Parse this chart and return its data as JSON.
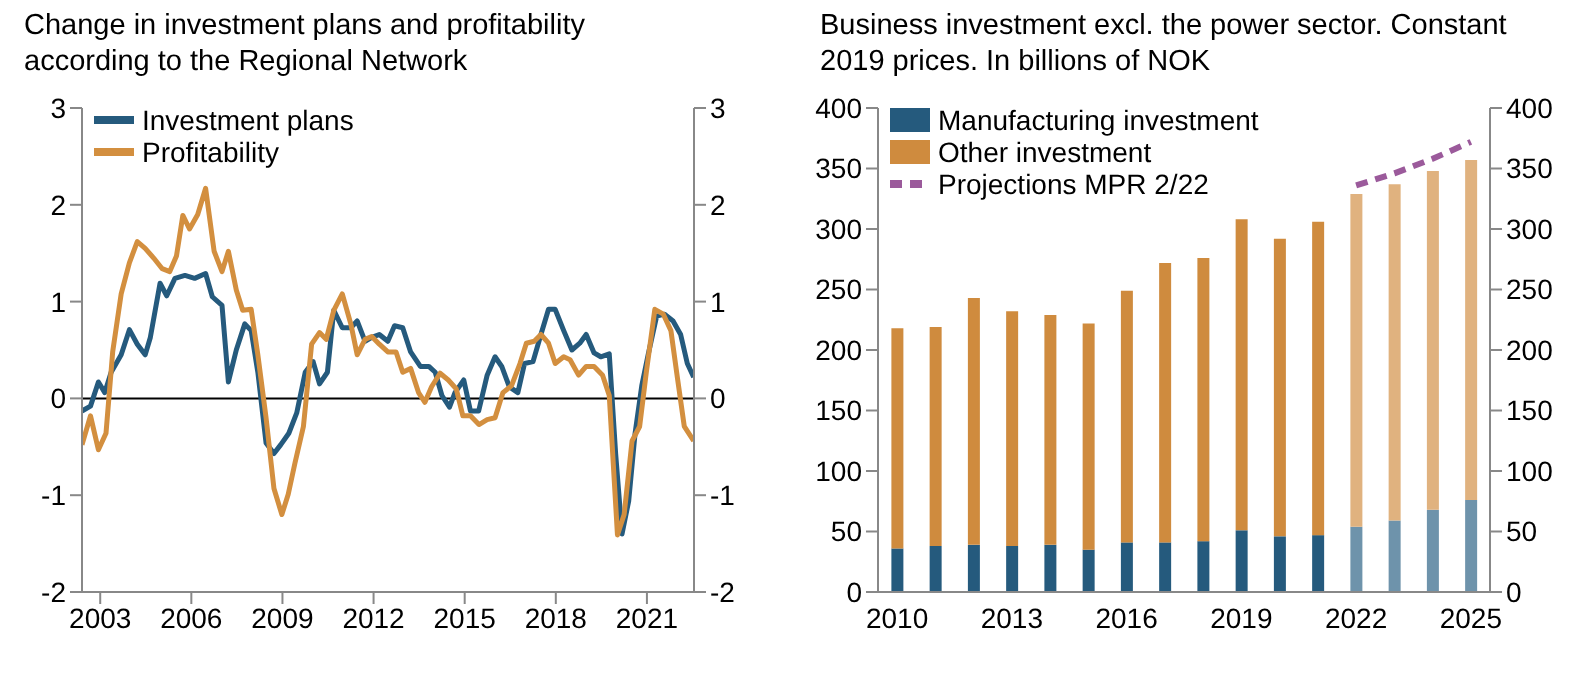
{
  "chart_data": [
    {
      "type": "line",
      "title": "Change in investment plans and profitability according to the Regional Network",
      "xlim": [
        2002.4,
        2022.55
      ],
      "xticks": [
        2003,
        2006,
        2009,
        2012,
        2015,
        2018,
        2021
      ],
      "ylim": [
        -2,
        3
      ],
      "yticks": [
        -2,
        -1,
        0,
        1,
        2,
        3
      ],
      "y2lim": [
        -2,
        3
      ],
      "y2ticks": [
        -2,
        -1,
        0,
        1,
        2,
        3
      ],
      "legend": "top left",
      "marker": "none",
      "ref_lines": [
        {
          "axis": "y",
          "value": 0,
          "color": "#000000"
        }
      ],
      "series": [
        {
          "name": "Investment plans",
          "color": "#255a7d",
          "x": [
            2002.4,
            2002.68,
            2002.94,
            2003.15,
            2003.36,
            2003.69,
            2003.96,
            2004.22,
            2004.48,
            2004.65,
            2004.97,
            2005.19,
            2005.46,
            2005.79,
            2006.11,
            2006.47,
            2006.69,
            2007.01,
            2007.22,
            2007.48,
            2007.76,
            2007.97,
            2008.19,
            2008.46,
            2008.72,
            2008.94,
            2009.21,
            2009.47,
            2009.75,
            2010.01,
            2010.22,
            2010.48,
            2010.69,
            2010.97,
            2011.25,
            2011.46,
            2011.72,
            2011.94,
            2012.19,
            2012.47,
            2012.69,
            2012.96,
            2013.22,
            2013.54,
            2013.82,
            2014.03,
            2014.25,
            2014.5,
            2014.68,
            2014.97,
            2015.19,
            2015.46,
            2015.74,
            2016.0,
            2016.22,
            2016.47,
            2016.75,
            2016.97,
            2017.25,
            2017.51,
            2017.76,
            2017.98,
            2018.26,
            2018.53,
            2018.79,
            2019.0,
            2019.26,
            2019.48,
            2019.76,
            2019.97,
            2020.18,
            2020.4,
            2020.61,
            2020.83,
            2021.04,
            2021.32,
            2021.58,
            2021.86,
            2022.11,
            2022.33,
            2022.54
          ],
          "values": [
            -0.13,
            -0.08,
            0.17,
            0.06,
            0.27,
            0.45,
            0.71,
            0.56,
            0.45,
            0.63,
            1.19,
            1.06,
            1.24,
            1.27,
            1.24,
            1.29,
            1.05,
            0.96,
            0.17,
            0.5,
            0.77,
            0.7,
            0.27,
            -0.46,
            -0.57,
            -0.48,
            -0.36,
            -0.15,
            0.27,
            0.38,
            0.15,
            0.27,
            0.91,
            0.73,
            0.73,
            0.8,
            0.59,
            0.63,
            0.66,
            0.59,
            0.75,
            0.73,
            0.48,
            0.33,
            0.33,
            0.27,
            0.03,
            -0.09,
            0.06,
            0.19,
            -0.13,
            -0.13,
            0.24,
            0.43,
            0.33,
            0.12,
            0.06,
            0.36,
            0.38,
            0.66,
            0.92,
            0.92,
            0.7,
            0.5,
            0.57,
            0.66,
            0.47,
            0.43,
            0.46,
            -0.57,
            -1.4,
            -1.06,
            -0.36,
            0.13,
            0.45,
            0.85,
            0.87,
            0.8,
            0.66,
            0.36,
            0.22
          ]
        },
        {
          "name": "Profitability",
          "color": "#d38f3f",
          "x": [
            2002.4,
            2002.68,
            2002.94,
            2003.19,
            2003.41,
            2003.69,
            2003.96,
            2004.22,
            2004.48,
            2004.76,
            2005.04,
            2005.29,
            2005.51,
            2005.72,
            2005.94,
            2006.21,
            2006.47,
            2006.75,
            2007.01,
            2007.22,
            2007.48,
            2007.69,
            2007.97,
            2008.19,
            2008.46,
            2008.72,
            2008.98,
            2009.19,
            2009.41,
            2009.69,
            2009.96,
            2010.22,
            2010.44,
            2010.69,
            2010.97,
            2011.25,
            2011.46,
            2011.72,
            2011.94,
            2012.19,
            2012.47,
            2012.74,
            2012.96,
            2013.22,
            2013.48,
            2013.69,
            2013.91,
            2014.19,
            2014.46,
            2014.72,
            2014.94,
            2015.19,
            2015.47,
            2015.74,
            2016.0,
            2016.26,
            2016.54,
            2016.82,
            2017.03,
            2017.29,
            2017.51,
            2017.76,
            2017.98,
            2018.26,
            2018.47,
            2018.75,
            2019.0,
            2019.26,
            2019.54,
            2019.76,
            2020.03,
            2020.25,
            2020.51,
            2020.76,
            2020.98,
            2021.26,
            2021.54,
            2021.79,
            2022.01,
            2022.23,
            2022.54
          ],
          "values": [
            -0.48,
            -0.18,
            -0.53,
            -0.36,
            0.48,
            1.08,
            1.4,
            1.62,
            1.55,
            1.45,
            1.34,
            1.31,
            1.47,
            1.89,
            1.75,
            1.9,
            2.17,
            1.52,
            1.31,
            1.52,
            1.12,
            0.91,
            0.92,
            0.45,
            -0.2,
            -0.93,
            -1.2,
            -0.99,
            -0.67,
            -0.29,
            0.56,
            0.68,
            0.61,
            0.91,
            1.08,
            0.77,
            0.45,
            0.61,
            0.64,
            0.56,
            0.48,
            0.48,
            0.27,
            0.31,
            0.06,
            -0.04,
            0.12,
            0.26,
            0.19,
            0.1,
            -0.18,
            -0.18,
            -0.27,
            -0.22,
            -0.2,
            0.06,
            0.13,
            0.36,
            0.57,
            0.59,
            0.66,
            0.57,
            0.36,
            0.43,
            0.4,
            0.24,
            0.33,
            0.33,
            0.24,
            0.03,
            -1.41,
            -1.2,
            -0.44,
            -0.29,
            0.27,
            0.92,
            0.87,
            0.7,
            0.2,
            -0.29,
            -0.44
          ]
        }
      ]
    },
    {
      "type": "bar",
      "stacked": true,
      "title": "Business investment excl. the power sector. Constant 2019 prices. In billions of NOK",
      "categories": [
        "2010",
        null,
        null,
        "2013",
        null,
        null,
        "2016",
        null,
        null,
        "2019",
        null,
        null,
        "2022",
        null,
        null,
        "2025"
      ],
      "ylim": [
        0,
        400
      ],
      "yticks": [
        0,
        50,
        100,
        150,
        200,
        250,
        300,
        350,
        400
      ],
      "y2lim": [
        0,
        400
      ],
      "y2ticks": [
        0,
        50,
        100,
        150,
        200,
        250,
        300,
        350,
        400
      ],
      "legend": "top left",
      "marker": "none",
      "series": [
        {
          "name": "Manufacturing investment",
          "color": "#255a7d",
          "colors": [
            "#255a7d",
            "#255a7d",
            "#255a7d",
            "#255a7d",
            "#255a7d",
            "#255a7d",
            "#255a7d",
            "#255a7d",
            "#255a7d",
            "#255a7d",
            "#255a7d",
            "#255a7d",
            "#6e93ab",
            "#6e93ab",
            "#6e93ab",
            "#6e93ab"
          ],
          "values": [
            36,
            38,
            39,
            38,
            39,
            35,
            41,
            41,
            42,
            51,
            46,
            47,
            54,
            59,
            68,
            76
          ]
        },
        {
          "name": "Other investment",
          "color": "#cf8b3e",
          "colors": [
            "#cf8b3e",
            "#cf8b3e",
            "#cf8b3e",
            "#cf8b3e",
            "#cf8b3e",
            "#cf8b3e",
            "#cf8b3e",
            "#cf8b3e",
            "#cf8b3e",
            "#cf8b3e",
            "#cf8b3e",
            "#cf8b3e",
            "#e0b27f",
            "#e0b27f",
            "#e0b27f",
            "#e0b27f"
          ],
          "values": [
            182,
            181,
            204,
            194,
            190,
            187,
            208,
            231,
            234,
            257,
            246,
            259,
            275,
            278,
            280,
            281
          ]
        },
        {
          "name": "Projections MPR 2/22",
          "type": "line",
          "line_style": "dashed",
          "color": "#9b5a9b",
          "values": [
            null,
            null,
            null,
            null,
            null,
            null,
            null,
            null,
            null,
            null,
            null,
            null,
            336,
            346,
            358,
            372
          ]
        }
      ]
    }
  ]
}
